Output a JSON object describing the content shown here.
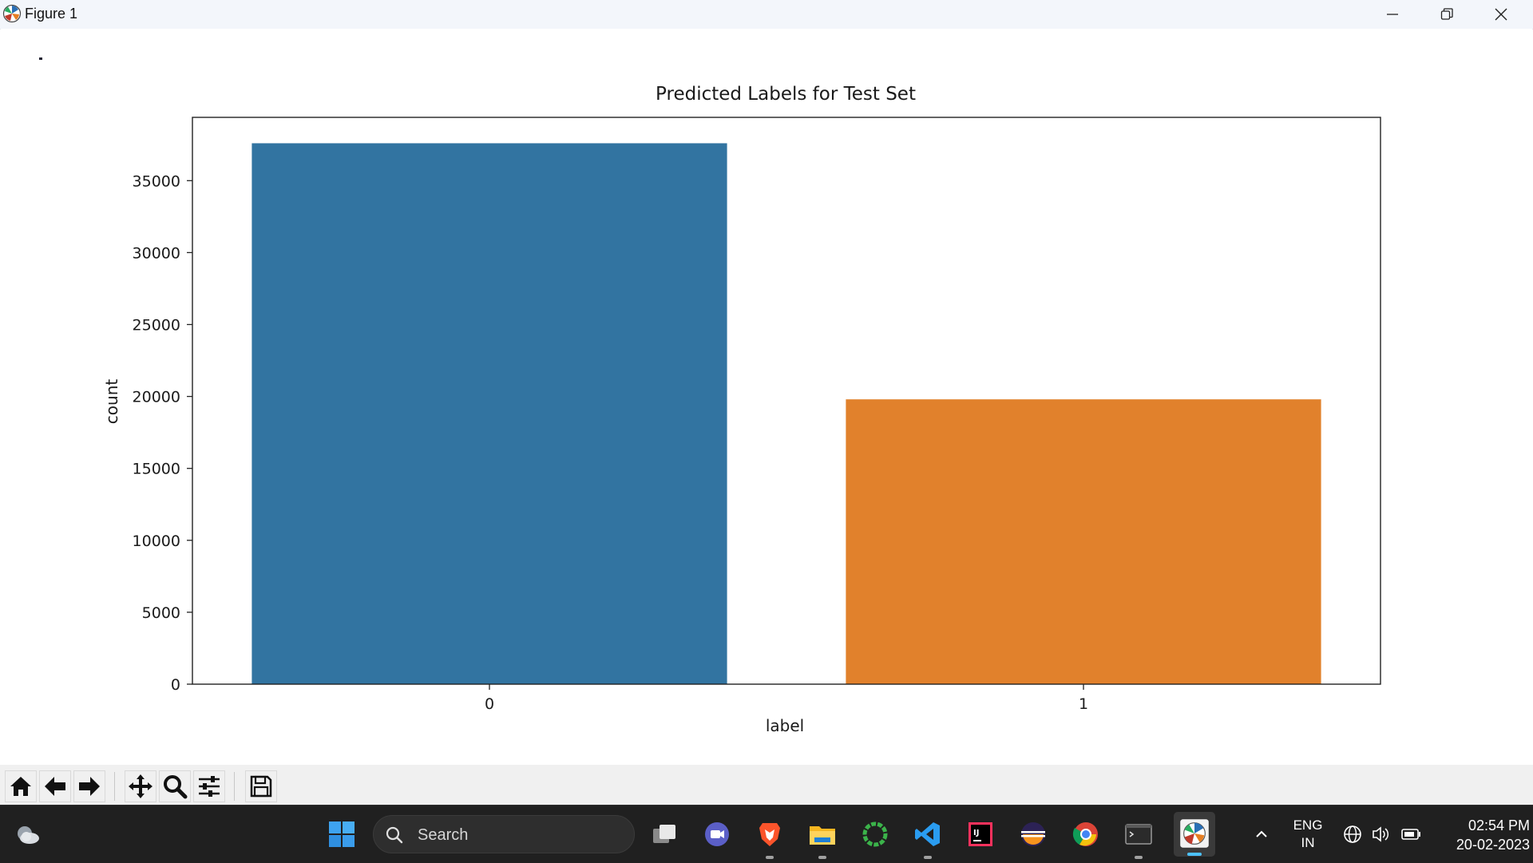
{
  "window": {
    "title": "Figure 1"
  },
  "chart_data": {
    "type": "bar",
    "title": "Predicted Labels for Test Set",
    "xlabel": "label",
    "ylabel": "count",
    "categories": [
      "0",
      "1"
    ],
    "values": [
      37600,
      19800
    ],
    "colors": [
      "#3274a1",
      "#e1812c"
    ],
    "ylim": [
      0,
      39400
    ],
    "yticks": [
      0,
      5000,
      10000,
      15000,
      20000,
      25000,
      30000,
      35000
    ],
    "ytick_labels": [
      "0",
      "5000",
      "10000",
      "15000",
      "20000",
      "25000",
      "30000",
      "35000"
    ],
    "grid": false,
    "legend": "none"
  },
  "toolbar": {
    "buttons": [
      "home-icon",
      "back-arrow-icon",
      "forward-arrow-icon",
      "pan-icon",
      "zoom-icon",
      "configure-subplots-icon",
      "save-icon"
    ]
  },
  "taskbar": {
    "search_placeholder": "Search",
    "apps": [
      "weather-icon",
      "windows-start-icon",
      "task-view-icon",
      "teams-chat-icon",
      "brave-browser-icon",
      "file-explorer-icon",
      "refresh-app-icon",
      "vscode-icon",
      "intellij-icon",
      "eclipse-icon",
      "chrome-icon",
      "terminal-icon",
      "matplotlib-figure-icon"
    ],
    "language_line1": "ENG",
    "language_line2": "IN",
    "time": "02:54 PM",
    "date": "20-02-2023"
  }
}
